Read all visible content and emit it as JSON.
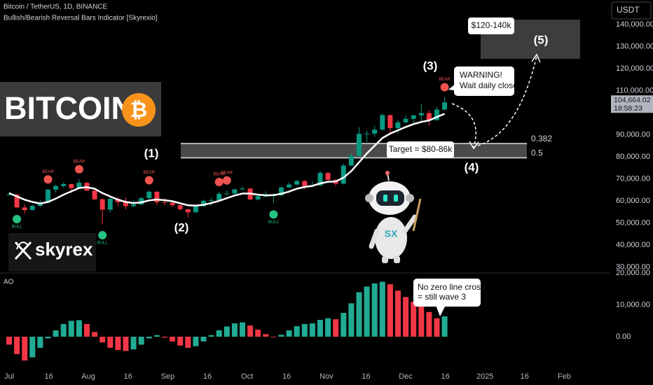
{
  "header": {
    "symbol": "Bitcoin / TetherUS, 1D, BINANCE",
    "indicator": "Bullish/Bearish Reversal Bars Indicator [Skyrexio]",
    "currency": "USDT"
  },
  "logo": {
    "text": "BITCOIN",
    "symbol": "₿"
  },
  "brand": "skyrex",
  "annotations": {
    "waves": [
      "(1)",
      "(2)",
      "(3)",
      "(4)",
      "(5)"
    ],
    "zone_label": "$120-140k",
    "warning": [
      "WARNING!",
      "Wait daily close"
    ],
    "target": "Target = $80-86k",
    "ao_note": [
      "No zero line cross",
      "= still wave 3"
    ]
  },
  "chart_data": [
    {
      "type": "candlestick",
      "colors": {
        "up": "#089981",
        "down": "#f23645"
      },
      "ohlc": [
        [
          62700,
          63800,
          62400,
          62900
        ],
        [
          62900,
          63000,
          56800,
          57000
        ],
        [
          57000,
          58500,
          54200,
          55800
        ],
        [
          55800,
          58200,
          55700,
          57700
        ],
        [
          57700,
          60500,
          57200,
          59200
        ],
        [
          59200,
          65300,
          58900,
          65100
        ],
        [
          65100,
          67300,
          63600,
          66700
        ],
        [
          66700,
          68400,
          65900,
          67600
        ],
        [
          67600,
          67800,
          63500,
          65800
        ],
        [
          65800,
          69900,
          65600,
          68200
        ],
        [
          68200,
          68500,
          64500,
          64600
        ],
        [
          64600,
          65600,
          60200,
          60700
        ],
        [
          60700,
          61000,
          49500,
          56000
        ],
        [
          56000,
          61700,
          54600,
          60900
        ],
        [
          60900,
          61800,
          57600,
          59400
        ],
        [
          59400,
          61500,
          56200,
          57600
        ],
        [
          57600,
          60200,
          57100,
          58400
        ],
        [
          58400,
          61800,
          58100,
          61200
        ],
        [
          61200,
          64900,
          60800,
          64100
        ],
        [
          64100,
          64500,
          58200,
          59400
        ],
        [
          59400,
          61200,
          58000,
          59100
        ],
        [
          59100,
          59800,
          57200,
          58000
        ],
        [
          58000,
          58300,
          55600,
          56200
        ],
        [
          56200,
          56300,
          52600,
          54800
        ],
        [
          54800,
          58000,
          54500,
          57600
        ],
        [
          57600,
          60600,
          57400,
          60000
        ],
        [
          60000,
          61300,
          57800,
          60300
        ],
        [
          60300,
          64100,
          60200,
          63200
        ],
        [
          63200,
          64800,
          62600,
          63300
        ],
        [
          63300,
          65500,
          62700,
          65200
        ],
        [
          65200,
          66500,
          64800,
          65600
        ],
        [
          65600,
          65700,
          60300,
          60600
        ],
        [
          60600,
          62400,
          60100,
          62100
        ],
        [
          62100,
          64300,
          61800,
          62200
        ],
        [
          62200,
          63400,
          58900,
          62500
        ],
        [
          62500,
          66500,
          62300,
          66100
        ],
        [
          66100,
          68400,
          65900,
          67400
        ],
        [
          67400,
          69400,
          67100,
          69000
        ],
        [
          69000,
          69300,
          65300,
          66600
        ],
        [
          66600,
          68800,
          66000,
          67000
        ],
        [
          67000,
          73600,
          66800,
          72700
        ],
        [
          72700,
          72800,
          69000,
          69500
        ],
        [
          69500,
          69900,
          66800,
          67800
        ],
        [
          67800,
          76800,
          67500,
          76000
        ],
        [
          76000,
          81500,
          75700,
          80400
        ],
        [
          80400,
          93400,
          80200,
          90400
        ],
        [
          90400,
          91800,
          86600,
          90500
        ],
        [
          90500,
          94000,
          89000,
          92300
        ],
        [
          92300,
          99600,
          91800,
          98900
        ],
        [
          98900,
          98900,
          90800,
          93000
        ],
        [
          93000,
          96700,
          90500,
          95600
        ],
        [
          95600,
          98700,
          95100,
          97200
        ],
        [
          97200,
          99000,
          94500,
          98800
        ],
        [
          98800,
          103900,
          96000,
          99800
        ],
        [
          99800,
          101200,
          94200,
          96600
        ],
        [
          96600,
          102500,
          96400,
          101400
        ],
        [
          101400,
          107100,
          101200,
          104664.02
        ]
      ],
      "ma": {
        "color": "#ffffff",
        "values": [
          63500,
          62000,
          60500,
          59500,
          58800,
          59500,
          61000,
          62800,
          64300,
          65800,
          66200,
          65500,
          63500,
          62000,
          60500,
          59500,
          59000,
          59300,
          60200,
          60600,
          60300,
          59800,
          58900,
          58000,
          57800,
          58200,
          59000,
          60000,
          61200,
          62400,
          63300,
          63300,
          62800,
          62500,
          62600,
          63200,
          64200,
          65500,
          66300,
          66800,
          67900,
          68600,
          68800,
          70500,
          73500,
          77500,
          81500,
          85000,
          88500,
          90500,
          92000,
          93500,
          94800,
          95800,
          96500,
          98000,
          99500
        ]
      },
      "bear_signals": {
        "color": "#ef5350",
        "labels": [
          null,
          null,
          null,
          null,
          null,
          "BEAR",
          null,
          null,
          null,
          "BEAR",
          null,
          null,
          null,
          null,
          null,
          null,
          null,
          null,
          "BEAR",
          null,
          null,
          null,
          null,
          null,
          null,
          null,
          null,
          "BEAR",
          "BEAR",
          null,
          null,
          null,
          null,
          null,
          null,
          null,
          null,
          null,
          null,
          null,
          null,
          null,
          null,
          null,
          null,
          null,
          null,
          null,
          null,
          null,
          null,
          null,
          null,
          null,
          null,
          null,
          "BEAR"
        ]
      },
      "bull_signals": {
        "color": "#26c281",
        "labels": [
          null,
          "BULL",
          null,
          null,
          null,
          null,
          null,
          null,
          null,
          null,
          null,
          null,
          "BULL",
          null,
          null,
          null,
          null,
          null,
          null,
          null,
          null,
          null,
          null,
          null,
          null,
          null,
          null,
          null,
          null,
          null,
          null,
          null,
          null,
          null,
          "BULL",
          null,
          null,
          null,
          null,
          null,
          null,
          null,
          null,
          null,
          null,
          null,
          null,
          null,
          null,
          null,
          null,
          null,
          null,
          null,
          null,
          null,
          null
        ]
      },
      "ylim": [
        27900,
        151100
      ],
      "yticks": [
        {
          "value": 140000,
          "label": "140,000.00"
        },
        {
          "value": 130000,
          "label": "130,000.00"
        },
        {
          "value": 120000,
          "label": "120,000.00"
        },
        {
          "value": 110000,
          "label": "110,000.00"
        },
        {
          "value": 90000,
          "label": "90,000.00"
        },
        {
          "value": 80000,
          "label": "80,000.00"
        },
        {
          "value": 70000,
          "label": "70,000.00"
        },
        {
          "value": 60000,
          "label": "60,000.00"
        },
        {
          "value": 50000,
          "label": "50,000.00"
        },
        {
          "value": 40000,
          "label": "40,000.00"
        },
        {
          "value": 30000,
          "label": "30,000.00"
        }
      ],
      "last_price": {
        "value": 104664.02,
        "label": "104,664.02"
      },
      "countdown": "18:58:23",
      "fib": [
        {
          "level": 0.382,
          "price": 86000
        },
        {
          "level": 0.5,
          "price": 79500
        }
      ],
      "zone": [
        124400,
        142200
      ],
      "x_labels": [
        "Jul",
        "16",
        "Aug",
        "16",
        "Sep",
        "16",
        "Oct",
        "16",
        "Nov",
        "16",
        "Dec",
        "16",
        "2025",
        "16",
        "Feb"
      ]
    },
    {
      "type": "histogram",
      "title": "AO",
      "colors": {
        "up": "#22ab94",
        "down": "#f23645"
      },
      "values": [
        -2500,
        -5500,
        -7500,
        -6500,
        -3500,
        -500,
        2000,
        4000,
        5000,
        5200,
        4000,
        1500,
        -1800,
        -3500,
        -4200,
        -4500,
        -4000,
        -2500,
        -500,
        500,
        -300,
        -1500,
        -2800,
        -3500,
        -3000,
        -1500,
        500,
        2000,
        3200,
        4200,
        4500,
        3500,
        2200,
        800,
        -200,
        600,
        2000,
        3300,
        4000,
        4200,
        5300,
        5800,
        5500,
        7500,
        10500,
        14000,
        15800,
        16800,
        17300,
        16500,
        14500,
        12500,
        11000,
        9500,
        7800,
        5800,
        6400
      ],
      "ylim": [
        -9700,
        20500
      ],
      "yticks": [
        {
          "value": 20000,
          "label": "20,000.00"
        },
        {
          "value": 10000,
          "label": "10,000.00"
        },
        {
          "value": 0,
          "label": "0.00"
        }
      ]
    }
  ]
}
